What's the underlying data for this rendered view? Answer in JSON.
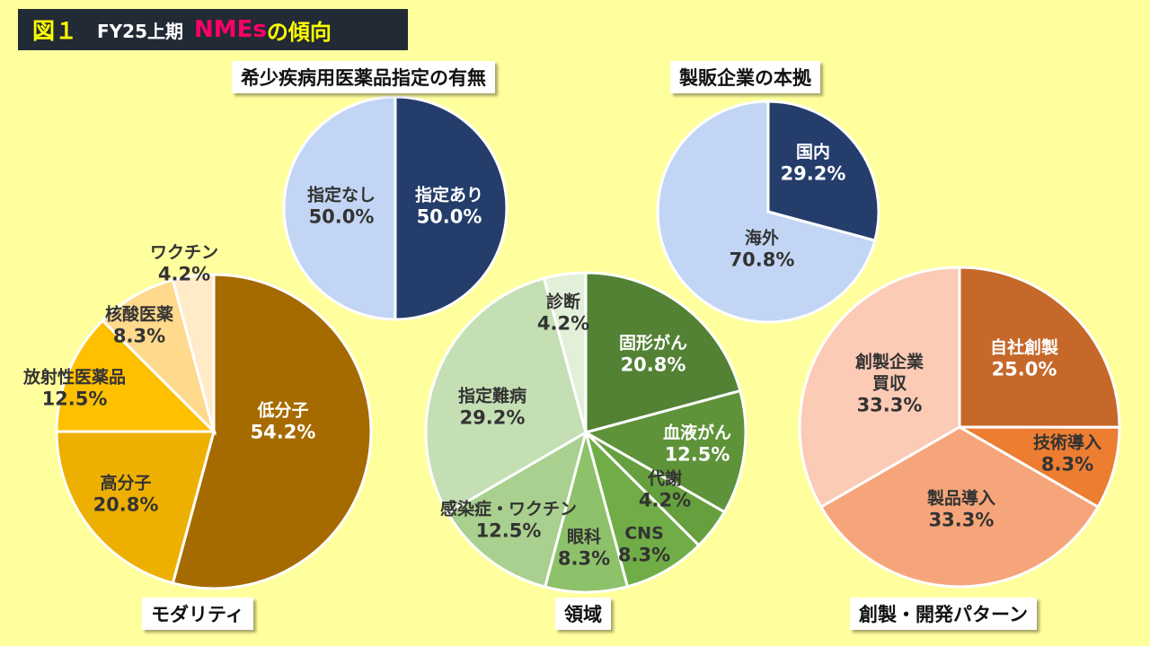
{
  "title": {
    "fig": "図１",
    "period": "FY25上期",
    "nmes": "NMEs",
    "rest": "の傾向"
  },
  "colors": {
    "background": "#FFFF9E",
    "title_bg": "#222A35"
  },
  "chart_data": [
    {
      "type": "pie",
      "title": "希少疾病用医薬品指定の有無",
      "slices": [
        {
          "label": "指定あり",
          "value": 50.0,
          "display": "50.0%",
          "color": "#243D6B",
          "text": "#fff"
        },
        {
          "label": "指定なし",
          "value": 50.0,
          "display": "50.0%",
          "color": "#C2D5F4",
          "text": "#333"
        }
      ]
    },
    {
      "type": "pie",
      "title": "製販企業の本拠",
      "slices": [
        {
          "label": "国内",
          "value": 29.2,
          "display": "29.2%",
          "color": "#243D6B",
          "text": "#fff"
        },
        {
          "label": "海外",
          "value": 70.8,
          "display": "70.8%",
          "color": "#C2D5F4",
          "text": "#333"
        }
      ]
    },
    {
      "type": "pie",
      "title": "モダリティ",
      "slices": [
        {
          "label": "低分子",
          "value": 54.2,
          "display": "54.2%",
          "color": "#A56B00",
          "text": "#fff"
        },
        {
          "label": "高分子",
          "value": 20.8,
          "display": "20.8%",
          "color": "#EEB000",
          "text": "#333"
        },
        {
          "label": "放射性医薬品",
          "value": 12.5,
          "display": "12.5%",
          "color": "#FFC000",
          "text": "#333"
        },
        {
          "label": "核酸医薬",
          "value": 8.3,
          "display": "8.3%",
          "color": "#FFD98C",
          "text": "#333"
        },
        {
          "label": "ワクチン",
          "value": 4.2,
          "display": "4.2%",
          "color": "#FFEBC8",
          "text": "#333"
        }
      ]
    },
    {
      "type": "pie",
      "title": "領域",
      "slices": [
        {
          "label": "固形がん",
          "value": 20.8,
          "display": "20.8%",
          "color": "#548235",
          "text": "#fff"
        },
        {
          "label": "血液がん",
          "value": 12.5,
          "display": "12.5%",
          "color": "#5E9339",
          "text": "#fff"
        },
        {
          "label": "代謝",
          "value": 4.2,
          "display": "4.2%",
          "color": "#66A03E",
          "text": "#333"
        },
        {
          "label": "CNS",
          "value": 8.3,
          "display": "8.3%",
          "color": "#70AD47",
          "text": "#333"
        },
        {
          "label": "眼科",
          "value": 8.3,
          "display": "8.3%",
          "color": "#8DC16A",
          "text": "#333"
        },
        {
          "label": "感染症・ワクチン",
          "value": 12.5,
          "display": "12.5%",
          "color": "#A9D08E",
          "text": "#333"
        },
        {
          "label": "指定難病",
          "value": 29.2,
          "display": "29.2%",
          "color": "#C5DFB4",
          "text": "#333"
        },
        {
          "label": "診断",
          "value": 4.2,
          "display": "4.2%",
          "color": "#E2EFD9",
          "text": "#333"
        }
      ]
    },
    {
      "type": "pie",
      "title": "創製・開発パターン",
      "slices": [
        {
          "label": "自社創製",
          "value": 25.0,
          "display": "25.0%",
          "color": "#C5682A",
          "text": "#fff"
        },
        {
          "label": "技術導入",
          "value": 8.3,
          "display": "8.3%",
          "color": "#ED7D31",
          "text": "#333"
        },
        {
          "label": "製品導入",
          "value": 33.3,
          "display": "33.3%",
          "color": "#F6A57A",
          "text": "#333"
        },
        {
          "label": "創製企業買収",
          "value": 33.3,
          "display": "33.3%",
          "color": "#FBCBB5",
          "text": "#333"
        }
      ]
    }
  ]
}
